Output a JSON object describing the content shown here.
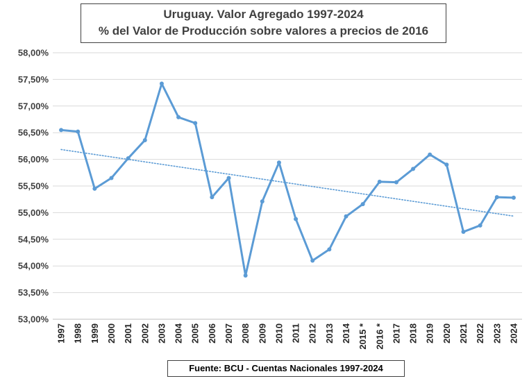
{
  "chart_data": {
    "type": "line",
    "title": "Uruguay. Valor Agregado 1997-2024",
    "subtitle": "% del Valor de Producción sobre valores a precios de 2016",
    "source": "Fuente: BCU - Cuentas Nacionales 1997-2024",
    "categories": [
      "1997",
      "1998",
      "1999",
      "2000",
      "2001",
      "2002",
      "2003",
      "2004",
      "2005",
      "2006",
      "2007",
      "2008",
      "2009",
      "2010",
      "2011",
      "2012",
      "2013",
      "2014",
      "2015 *",
      "2016 *",
      "2017",
      "2018",
      "2019",
      "2020",
      "2021",
      "2022",
      "2023",
      "2024"
    ],
    "series": [
      {
        "values": [
          56.55,
          56.52,
          55.45,
          55.65,
          56.02,
          56.36,
          57.42,
          56.79,
          56.68,
          55.29,
          55.65,
          53.82,
          55.21,
          55.94,
          54.88,
          54.1,
          54.31,
          54.93,
          55.16,
          55.58,
          55.57,
          55.82,
          56.09,
          55.9,
          54.64,
          54.76,
          55.29,
          55.28
        ],
        "color": "#5b9bd5"
      }
    ],
    "trendline": {
      "type": "linear",
      "color": "#5b9bd5",
      "style": "dotted"
    },
    "ylim": [
      53.0,
      58.0
    ],
    "ytick_step": 0.5,
    "ytick_labels": [
      "53,00%",
      "53,50%",
      "54,00%",
      "54,50%",
      "55,00%",
      "55,50%",
      "56,00%",
      "56,50%",
      "57,00%",
      "57,50%",
      "58,00%"
    ],
    "grid": true,
    "xlabel": "",
    "ylabel": ""
  }
}
